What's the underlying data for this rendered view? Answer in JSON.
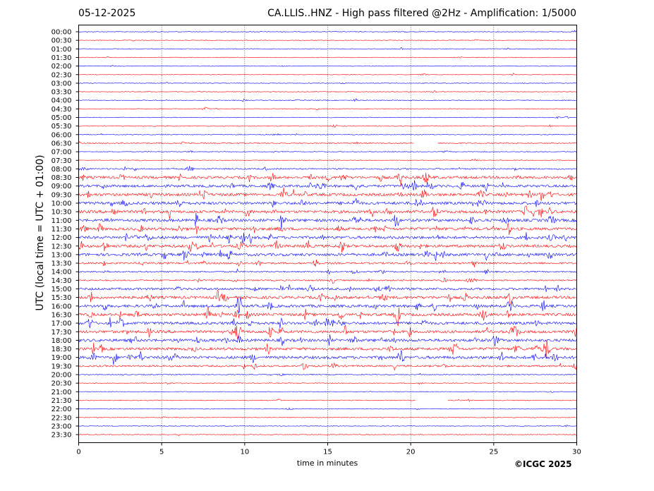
{
  "header": {
    "date": "05-12-2025",
    "title": "CA.LLIS..HNZ - High pass filtered @2Hz - Amplification: 1/5000"
  },
  "footer": {
    "copyright": "©ICGC 2025"
  },
  "chart_data": {
    "type": "line",
    "title": "CA.LLIS..HNZ - High pass filtered @2Hz - Amplification: 1/5000",
    "xlabel": "time in minutes",
    "ylabel": "UTC (local time = UTC + 01:00)",
    "xlim": [
      0,
      30
    ],
    "x_ticks": [
      0,
      5,
      10,
      15,
      20,
      25,
      30
    ],
    "grid": "vertical dotted lines at 5-minute intervals",
    "colors": {
      "odd_rows": "#ff0000",
      "even_rows": "#0000ff"
    },
    "rows": [
      "00:00",
      "00:30",
      "01:00",
      "01:30",
      "02:00",
      "02:30",
      "03:00",
      "03:30",
      "04:00",
      "04:30",
      "05:00",
      "05:30",
      "06:00",
      "06:30",
      "07:00",
      "07:30",
      "08:00",
      "08:30",
      "09:00",
      "09:30",
      "10:00",
      "10:30",
      "11:00",
      "11:30",
      "12:00",
      "12:30",
      "13:00",
      "13:30",
      "14:00",
      "14:30",
      "15:00",
      "15:30",
      "16:00",
      "16:30",
      "17:00",
      "17:30",
      "18:00",
      "18:30",
      "19:00",
      "19:30",
      "20:00",
      "20:30",
      "21:00",
      "21:30",
      "22:00",
      "22:30",
      "23:00",
      "23:30"
    ],
    "activity": [
      0.1,
      0.1,
      0.1,
      0.1,
      0.1,
      0.1,
      0.1,
      0.1,
      0.15,
      0.15,
      0.1,
      0.15,
      0.15,
      0.25,
      0.15,
      0.15,
      0.4,
      0.9,
      0.9,
      1.0,
      1.0,
      1.0,
      1.0,
      1.0,
      1.0,
      1.0,
      1.0,
      0.6,
      0.4,
      0.4,
      0.8,
      1.0,
      1.0,
      1.0,
      1.0,
      1.0,
      1.0,
      1.0,
      1.0,
      0.6,
      0.2,
      0.15,
      0.1,
      0.15,
      0.1,
      0.1,
      0.1,
      0.1
    ],
    "gaps": [
      {
        "row": "06:30",
        "from": 20.2,
        "to": 21.6
      },
      {
        "row": "21:30",
        "from": 20.3,
        "to": 22.2
      }
    ]
  }
}
